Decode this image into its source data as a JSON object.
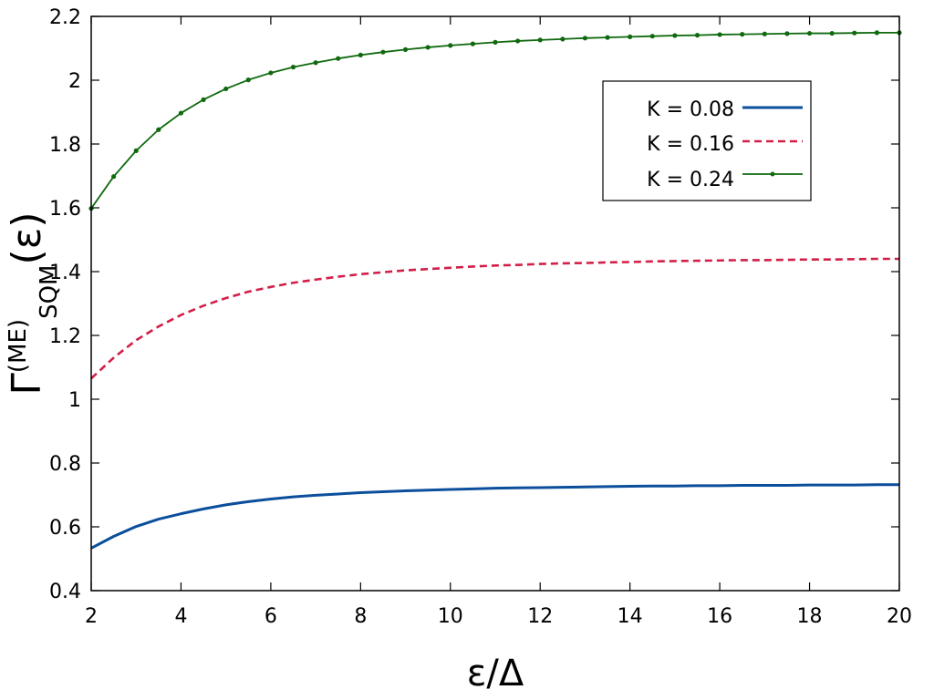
{
  "chart_data": {
    "type": "line",
    "xlabel": "ε/Δ",
    "ylabel": {
      "symbol": "Γ",
      "superscript": "(ME)",
      "subscript": "SQM",
      "argument": "(ε)"
    },
    "xlim": [
      2,
      20
    ],
    "ylim": [
      0.4,
      2.2
    ],
    "x_ticks": [
      2,
      4,
      6,
      8,
      10,
      12,
      14,
      16,
      18,
      20
    ],
    "y_ticks": [
      0.4,
      0.6,
      0.8,
      1,
      1.2,
      1.4,
      1.6,
      1.8,
      2,
      2.2
    ],
    "y_tick_labels": [
      "0.4",
      "0.6",
      "0.8",
      "1",
      "1.2",
      "1.4",
      "1.6",
      "1.8",
      "2",
      "2.2"
    ],
    "legend_position": "top-right",
    "x": [
      2,
      2.5,
      3,
      3.5,
      4,
      4.5,
      5,
      5.5,
      6,
      6.5,
      7,
      7.5,
      8,
      8.5,
      9,
      9.5,
      10,
      10.5,
      11,
      11.5,
      12,
      12.5,
      13,
      13.5,
      14,
      14.5,
      15,
      15.5,
      16,
      16.5,
      17,
      17.5,
      18,
      18.5,
      19,
      19.5,
      20
    ],
    "series": [
      {
        "name": "K = 0.08",
        "color": "#0b4f9c",
        "style": "solid",
        "values": [
          0.533,
          0.57,
          0.601,
          0.624,
          0.641,
          0.656,
          0.669,
          0.679,
          0.687,
          0.694,
          0.699,
          0.703,
          0.707,
          0.71,
          0.713,
          0.715,
          0.717,
          0.719,
          0.721,
          0.722,
          0.723,
          0.724,
          0.725,
          0.726,
          0.727,
          0.728,
          0.728,
          0.729,
          0.729,
          0.73,
          0.73,
          0.73,
          0.731,
          0.731,
          0.731,
          0.732,
          0.732
        ]
      },
      {
        "name": "K = 0.16",
        "color": "#d21f48",
        "style": "dashed",
        "values": [
          1.065,
          1.13,
          1.185,
          1.228,
          1.264,
          1.293,
          1.317,
          1.337,
          1.352,
          1.365,
          1.375,
          1.384,
          1.392,
          1.398,
          1.404,
          1.408,
          1.412,
          1.416,
          1.419,
          1.421,
          1.424,
          1.426,
          1.427,
          1.429,
          1.43,
          1.432,
          1.433,
          1.434,
          1.435,
          1.436,
          1.436,
          1.437,
          1.438,
          1.438,
          1.439,
          1.44,
          1.44
        ]
      },
      {
        "name": "K = 0.24",
        "color": "#0f6a0f",
        "style": "solid-points",
        "values": [
          1.598,
          1.698,
          1.779,
          1.845,
          1.897,
          1.939,
          1.973,
          2.001,
          2.023,
          2.041,
          2.055,
          2.068,
          2.079,
          2.088,
          2.096,
          2.103,
          2.109,
          2.114,
          2.119,
          2.123,
          2.126,
          2.129,
          2.132,
          2.134,
          2.136,
          2.138,
          2.14,
          2.141,
          2.143,
          2.144,
          2.145,
          2.146,
          2.147,
          2.147,
          2.148,
          2.149,
          2.149
        ]
      }
    ]
  }
}
